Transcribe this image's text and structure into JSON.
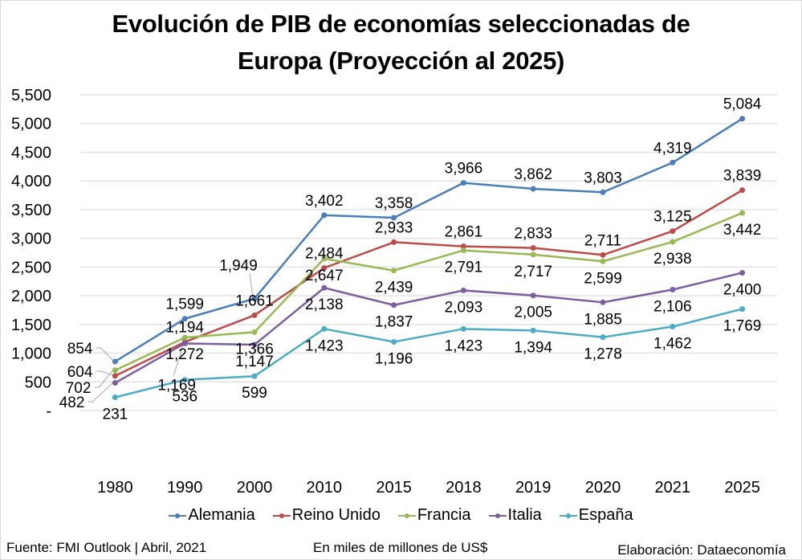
{
  "title_lines": [
    "Evolución de PIB de economías seleccionadas de",
    "Europa (Proyección al 2025)"
  ],
  "footer": {
    "source": "Fuente: FMI Outlook | Abril, 2021",
    "unit": "En miles de millones de US$",
    "credit": "Elaboración: Dataeconomía"
  },
  "chart_data": {
    "type": "line",
    "title": "Evolución de PIB de economías seleccionadas de Europa (Proyección al 2025)",
    "xlabel": "",
    "ylabel": "En miles de millones de US$",
    "categories": [
      "1980",
      "1990",
      "2000",
      "2010",
      "2015",
      "2018",
      "2019",
      "2020",
      "2021",
      "2025"
    ],
    "ylim": [
      0,
      5500
    ],
    "yticks": [
      0,
      500,
      1000,
      1500,
      2000,
      2500,
      3000,
      3500,
      4000,
      4500,
      5000,
      5500
    ],
    "ytick_labels": [
      "-",
      "500",
      "1,000",
      "1,500",
      "2,000",
      "2,500",
      "3,000",
      "3,500",
      "4,000",
      "4,500",
      "5,000",
      "5,500"
    ],
    "grid": true,
    "legend_position": "bottom",
    "series": [
      {
        "name": "Alemania",
        "color": "#4a7ebb",
        "values": [
          854,
          1599,
          1949,
          3402,
          3358,
          3966,
          3862,
          3803,
          4319,
          5084
        ],
        "labels": [
          "854",
          "1,599",
          "1,949",
          "3,402",
          "3,358",
          "3,966",
          "3,862",
          "3,803",
          "4,319",
          "5,084"
        ],
        "label_pos": [
          "left-leader",
          "above",
          "above-leader",
          "above",
          "above",
          "above",
          "above",
          "above",
          "above",
          "above"
        ]
      },
      {
        "name": "Reino Unido",
        "color": "#be4b48",
        "values": [
          604,
          1194,
          1661,
          2484,
          2933,
          2861,
          2833,
          2711,
          3125,
          3839
        ],
        "labels": [
          "604",
          "1,194",
          "1,661",
          "2,484",
          "2,933",
          "2,861",
          "2,833",
          "2,711",
          "3,125",
          "3,839"
        ],
        "label_pos": [
          "left-leader",
          "above",
          "above",
          "above",
          "above",
          "above",
          "above",
          "above",
          "above",
          "above"
        ]
      },
      {
        "name": "Francia",
        "color": "#98b954",
        "values": [
          702,
          1272,
          1366,
          2647,
          2439,
          2791,
          2717,
          2599,
          2938,
          3442
        ],
        "labels": [
          "702",
          "1,272",
          "1,366",
          "2,647",
          "2,439",
          "2,791",
          "2,717",
          "2,599",
          "2,938",
          "3,442"
        ],
        "label_pos": [
          "left-leader",
          "below",
          "below",
          "below",
          "below",
          "below",
          "below",
          "below",
          "below",
          "below"
        ]
      },
      {
        "name": "Italia",
        "color": "#7d5fa0",
        "values": [
          482,
          1169,
          1147,
          2138,
          1837,
          2093,
          2005,
          1885,
          2106,
          2400
        ],
        "labels": [
          "482",
          "1,169",
          "1,147",
          "2,138",
          "1,837",
          "2,093",
          "2,005",
          "1,885",
          "2,106",
          "2,400"
        ],
        "label_pos": [
          "left-leader",
          "below-leader",
          "below",
          "below",
          "below",
          "below",
          "below",
          "below",
          "below",
          "below"
        ]
      },
      {
        "name": "España",
        "color": "#4bacc6",
        "values": [
          231,
          536,
          599,
          1423,
          1196,
          1423,
          1394,
          1278,
          1462,
          1769
        ],
        "labels": [
          "231",
          "536",
          "599",
          "1,423",
          "1,196",
          "1,423",
          "1,394",
          "1,278",
          "1,462",
          "1,769"
        ],
        "label_pos": [
          "below",
          "below",
          "below",
          "below",
          "below",
          "below",
          "below",
          "below",
          "below",
          "below"
        ]
      }
    ]
  }
}
